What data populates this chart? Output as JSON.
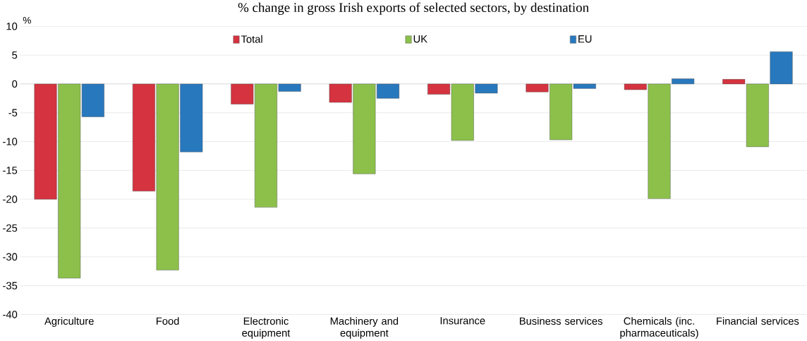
{
  "chart_data": {
    "type": "bar",
    "title": "% change in gross Irish exports of selected sectors, by destination",
    "ylabel": "%",
    "categories": [
      "Agriculture",
      "Food",
      "Electronic equipment",
      "Machinery and equipment",
      "Insurance",
      "Business services",
      "Chemicals (inc. pharmaceuticals)",
      "Financial services"
    ],
    "series": [
      {
        "name": "Total",
        "color": "#d4333f",
        "values": [
          -20.0,
          -18.6,
          -3.5,
          -3.2,
          -1.8,
          -1.4,
          -1.0,
          0.8
        ]
      },
      {
        "name": "UK",
        "color": "#8cc04b",
        "values": [
          -33.7,
          -32.3,
          -21.4,
          -15.6,
          -9.8,
          -9.7,
          -19.9,
          -10.9
        ]
      },
      {
        "name": "EU",
        "color": "#2878bd",
        "values": [
          -5.7,
          -11.8,
          -1.3,
          -2.5,
          -1.6,
          -0.8,
          0.9,
          5.6
        ]
      }
    ],
    "ylim": [
      -40,
      10
    ],
    "yticks": [
      -40,
      -35,
      -30,
      -25,
      -20,
      -15,
      -10,
      -5,
      0,
      5,
      10
    ],
    "grid": "y",
    "legend": "top"
  }
}
